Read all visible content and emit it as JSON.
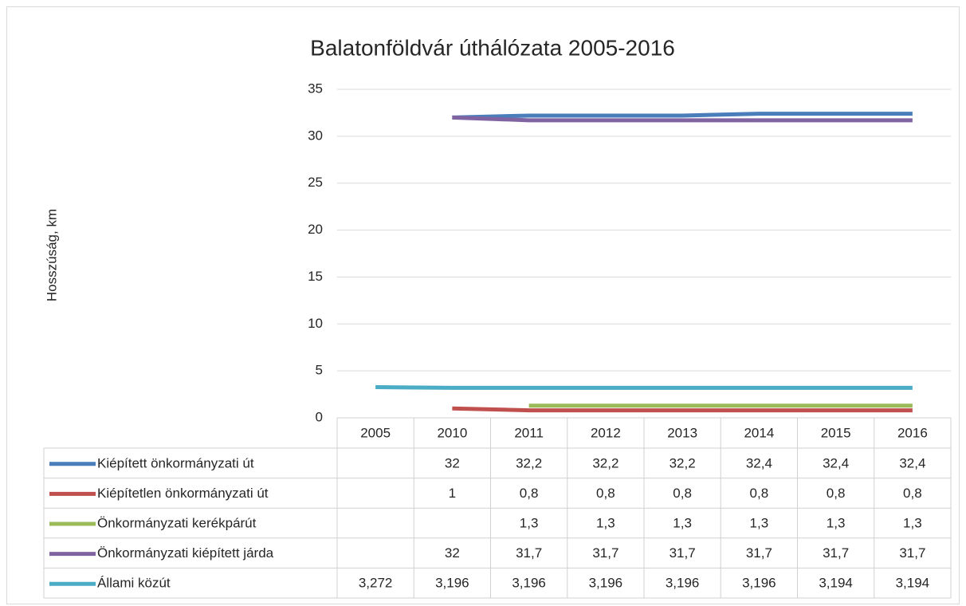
{
  "chart_data": {
    "type": "line",
    "title": "Balatonföldvár úthálózata 2005-2016",
    "y_label": "Hosszúság, km",
    "categories": [
      "2005",
      "2010",
      "2011",
      "2012",
      "2013",
      "2014",
      "2015",
      "2016"
    ],
    "series": [
      {
        "name": "Kiépített önkormányzati út",
        "color": "#4a7ebb",
        "values": [
          null,
          32,
          32.2,
          32.2,
          32.2,
          32.4,
          32.4,
          32.4
        ],
        "value_labels": [
          null,
          "32",
          "32,2",
          "32,2",
          "32,2",
          "32,4",
          "32,4",
          "32,4"
        ]
      },
      {
        "name": "Kiépítetlen önkormányzati út",
        "color": "#c0504d",
        "values": [
          null,
          1,
          0.8,
          0.8,
          0.8,
          0.8,
          0.8,
          0.8
        ],
        "value_labels": [
          null,
          "1",
          "0,8",
          "0,8",
          "0,8",
          "0,8",
          "0,8",
          "0,8"
        ]
      },
      {
        "name": "Önkormányzati kerékpárút",
        "color": "#9bbb59",
        "values": [
          null,
          null,
          1.3,
          1.3,
          1.3,
          1.3,
          1.3,
          1.3
        ],
        "value_labels": [
          null,
          null,
          "1,3",
          "1,3",
          "1,3",
          "1,3",
          "1,3",
          "1,3"
        ]
      },
      {
        "name": "Önkormányzati kiépített járda",
        "color": "#8064a2",
        "values": [
          null,
          32,
          31.7,
          31.7,
          31.7,
          31.7,
          31.7,
          31.7
        ],
        "value_labels": [
          null,
          "32",
          "31,7",
          "31,7",
          "31,7",
          "31,7",
          "31,7",
          "31,7"
        ]
      },
      {
        "name": "Állami közút",
        "color": "#4bacc6",
        "values": [
          3.272,
          3.196,
          3.196,
          3.196,
          3.196,
          3.196,
          3.194,
          3.194
        ],
        "value_labels": [
          "3,272",
          "3,196",
          "3,196",
          "3,196",
          "3,196",
          "3,196",
          "3,194",
          "3,194"
        ]
      }
    ],
    "ylim": [
      0,
      35
    ],
    "yticks": [
      0,
      5,
      10,
      15,
      20,
      25,
      30,
      35
    ],
    "grid": true,
    "data_table": true
  }
}
